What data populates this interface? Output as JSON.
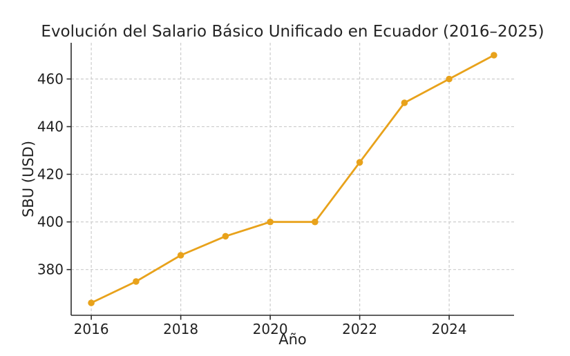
{
  "figure": {
    "title": "Evolución del Salario Básico Unificado en Ecuador (2016–2025)"
  },
  "chart_data": {
    "type": "line",
    "title": "Evolución del Salario Básico Unificado en Ecuador (2016–2025)",
    "xlabel": "Año",
    "ylabel": "SBU (USD)",
    "x": [
      2016,
      2017,
      2018,
      2019,
      2020,
      2021,
      2022,
      2023,
      2024,
      2025
    ],
    "values": [
      366,
      375,
      386,
      394,
      400,
      400,
      425,
      450,
      460,
      470
    ],
    "series_name": "SBU (USD)",
    "xticks": [
      2016,
      2018,
      2020,
      2022,
      2024
    ],
    "yticks": [
      380,
      400,
      420,
      440,
      460
    ],
    "xlim": [
      2015.55,
      2025.45
    ],
    "ylim": [
      360.8,
      475.2
    ],
    "grid": true,
    "grid_style": "dashed",
    "legend_position": "none",
    "line_color": "#E8A21B",
    "marker_color": "#E8A21B",
    "grid_color": "#CCCCCC",
    "axis_color": "#2B2B2B",
    "text_color": "#1F1F1F",
    "background_color": "#FFFFFF"
  }
}
